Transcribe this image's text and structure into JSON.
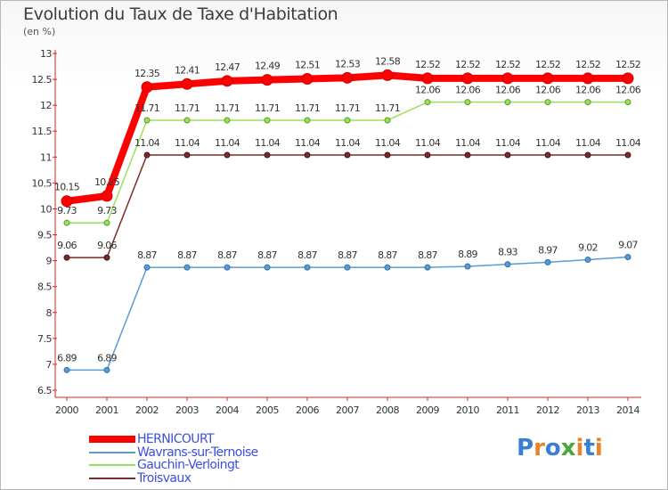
{
  "header": {
    "title": "Evolution du Taux de Taxe d'Habitation",
    "unit": "(en %)"
  },
  "logo": {
    "text": "Proxiti",
    "colors": [
      "#3a7fd6",
      "#e8832a",
      "#3a7fd6",
      "#4aa83a",
      "#e8832a",
      "#3a7fd6",
      "#e8832a"
    ]
  },
  "chart_data": {
    "type": "line",
    "x": [
      "2000",
      "2001",
      "2002",
      "2003",
      "2004",
      "2005",
      "2006",
      "2007",
      "2008",
      "2009",
      "2010",
      "2011",
      "2012",
      "2013",
      "2014"
    ],
    "ylim": [
      6.5,
      13
    ],
    "yticks": [
      "6.5",
      "7",
      "7.5",
      "8",
      "8.5",
      "9",
      "9.5",
      "10",
      "10.5",
      "11",
      "11.5",
      "12",
      "12.5",
      "13"
    ],
    "grid": false,
    "legend": "bottom-left",
    "series": [
      {
        "name": "HERNICOURT",
        "color": "#ff0000",
        "values": [
          10.15,
          10.25,
          12.35,
          12.41,
          12.47,
          12.49,
          12.51,
          12.53,
          12.58,
          12.52,
          12.52,
          12.52,
          12.52,
          12.52,
          12.52
        ],
        "labels": [
          "10.15",
          "10.25",
          "12.35",
          "12.41",
          "12.47",
          "12.49",
          "12.51",
          "12.53",
          "12.58",
          "12.52",
          "12.52",
          "12.52",
          "12.52",
          "12.52",
          "12.52"
        ]
      },
      {
        "name": "Wavrans-sur-Ternoise",
        "color": "#5b9bd5",
        "values": [
          6.89,
          6.89,
          8.87,
          8.87,
          8.87,
          8.87,
          8.87,
          8.87,
          8.87,
          8.87,
          8.89,
          8.93,
          8.97,
          9.02,
          9.07
        ],
        "labels": [
          "6.89",
          "6.89",
          "8.87",
          "8.87",
          "8.87",
          "8.87",
          "8.87",
          "8.87",
          "8.87",
          "8.87",
          "8.89",
          "8.93",
          "8.97",
          "9.02",
          "9.07"
        ]
      },
      {
        "name": "Gauchin-Verloingt",
        "color": "#99e05b",
        "values": [
          9.73,
          9.73,
          11.71,
          11.71,
          11.71,
          11.71,
          11.71,
          11.71,
          11.71,
          12.06,
          12.06,
          12.06,
          12.06,
          12.06,
          12.06
        ],
        "labels": [
          "9.73",
          "9.73",
          "11.71",
          "11.71",
          "11.71",
          "11.71",
          "11.71",
          "11.71",
          "11.71",
          "12.06",
          "12.06",
          "12.06",
          "12.06",
          "12.06",
          "12.06"
        ]
      },
      {
        "name": "Troisvaux",
        "color": "#7b2b2b",
        "values": [
          9.06,
          9.06,
          11.04,
          11.04,
          11.04,
          11.04,
          11.04,
          11.04,
          11.04,
          11.04,
          11.04,
          11.04,
          11.04,
          11.04,
          11.04
        ],
        "labels": [
          "9.06",
          "9.06",
          "11.04",
          "11.04",
          "11.04",
          "11.04",
          "11.04",
          "11.04",
          "11.04",
          "11.04",
          "11.04",
          "11.04",
          "11.04",
          "11.04",
          "11.04"
        ]
      }
    ]
  }
}
